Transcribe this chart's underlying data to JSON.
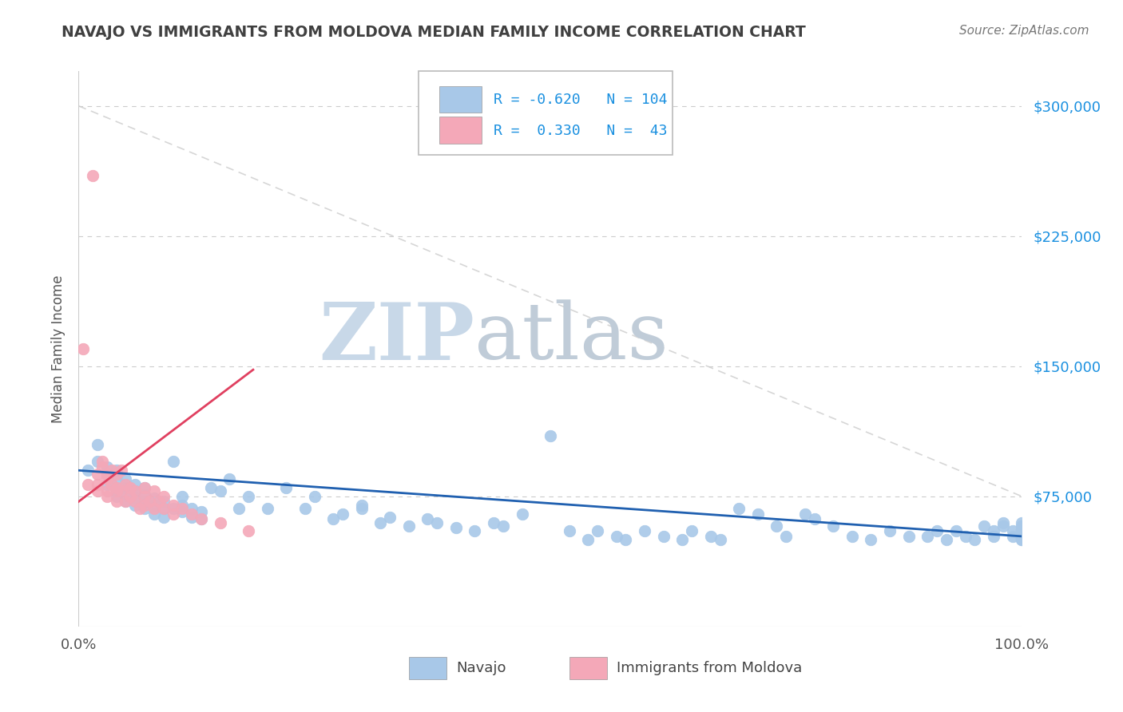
{
  "title": "NAVAJO VS IMMIGRANTS FROM MOLDOVA MEDIAN FAMILY INCOME CORRELATION CHART",
  "source_text": "Source: ZipAtlas.com",
  "ylabel": "Median Family Income",
  "xlim": [
    0,
    1
  ],
  "ylim": [
    0,
    320000
  ],
  "yticks": [
    75000,
    150000,
    225000,
    300000
  ],
  "ytick_labels": [
    "$75,000",
    "$150,000",
    "$225,000",
    "$300,000"
  ],
  "xtick_labels": [
    "0.0%",
    "100.0%"
  ],
  "legend_R_navajo": "-0.620",
  "legend_N_navajo": "104",
  "legend_R_moldova": "0.330",
  "legend_N_moldova": "43",
  "navajo_color": "#a8c8e8",
  "moldova_color": "#f4a8b8",
  "navajo_line_color": "#2060b0",
  "moldova_line_color": "#e04060",
  "diag_line_color": "#cccccc",
  "watermark_zip": "ZIP",
  "watermark_atlas": "atlas",
  "watermark_color_zip": "#c8d8e8",
  "watermark_color_atlas": "#c0ccd8",
  "background_color": "#ffffff",
  "grid_color": "#cccccc",
  "title_color": "#404040",
  "navajo_scatter_x": [
    0.01,
    0.02,
    0.02,
    0.03,
    0.03,
    0.03,
    0.04,
    0.04,
    0.04,
    0.04,
    0.05,
    0.05,
    0.05,
    0.05,
    0.06,
    0.06,
    0.06,
    0.06,
    0.07,
    0.07,
    0.07,
    0.07,
    0.08,
    0.08,
    0.08,
    0.09,
    0.09,
    0.09,
    0.1,
    0.1,
    0.11,
    0.11,
    0.11,
    0.12,
    0.12,
    0.13,
    0.13,
    0.14,
    0.15,
    0.16,
    0.17,
    0.18,
    0.2,
    0.22,
    0.24,
    0.25,
    0.27,
    0.28,
    0.3,
    0.3,
    0.32,
    0.33,
    0.35,
    0.37,
    0.38,
    0.4,
    0.42,
    0.44,
    0.45,
    0.47,
    0.5,
    0.52,
    0.54,
    0.55,
    0.57,
    0.58,
    0.6,
    0.62,
    0.64,
    0.65,
    0.67,
    0.68,
    0.7,
    0.72,
    0.74,
    0.75,
    0.77,
    0.78,
    0.8,
    0.82,
    0.84,
    0.86,
    0.88,
    0.9,
    0.91,
    0.92,
    0.93,
    0.94,
    0.95,
    0.96,
    0.97,
    0.97,
    0.98,
    0.98,
    0.99,
    0.99,
    1.0,
    1.0,
    1.0,
    1.0,
    1.0,
    1.0,
    1.0,
    1.0
  ],
  "navajo_scatter_y": [
    90000,
    105000,
    95000,
    88000,
    92000,
    82000,
    85000,
    90000,
    78000,
    75000,
    80000,
    72000,
    76000,
    85000,
    70000,
    74000,
    78000,
    82000,
    68000,
    72000,
    76000,
    80000,
    65000,
    70000,
    74000,
    63000,
    68000,
    72000,
    95000,
    68000,
    66000,
    70000,
    75000,
    63000,
    68000,
    62000,
    66000,
    80000,
    78000,
    85000,
    68000,
    75000,
    68000,
    80000,
    68000,
    75000,
    62000,
    65000,
    68000,
    70000,
    60000,
    63000,
    58000,
    62000,
    60000,
    57000,
    55000,
    60000,
    58000,
    65000,
    110000,
    55000,
    50000,
    55000,
    52000,
    50000,
    55000,
    52000,
    50000,
    55000,
    52000,
    50000,
    68000,
    65000,
    58000,
    52000,
    65000,
    62000,
    58000,
    52000,
    50000,
    55000,
    52000,
    52000,
    55000,
    50000,
    55000,
    52000,
    50000,
    58000,
    55000,
    52000,
    60000,
    58000,
    52000,
    55000,
    60000,
    55000,
    52000,
    50000,
    58000,
    55000,
    52000,
    50000
  ],
  "moldova_scatter_x": [
    0.005,
    0.01,
    0.015,
    0.02,
    0.02,
    0.02,
    0.025,
    0.025,
    0.03,
    0.03,
    0.03,
    0.03,
    0.035,
    0.035,
    0.04,
    0.04,
    0.04,
    0.04,
    0.045,
    0.045,
    0.05,
    0.05,
    0.055,
    0.055,
    0.06,
    0.06,
    0.065,
    0.07,
    0.07,
    0.07,
    0.075,
    0.08,
    0.08,
    0.085,
    0.09,
    0.09,
    0.1,
    0.1,
    0.11,
    0.12,
    0.13,
    0.15,
    0.18
  ],
  "moldova_scatter_y": [
    160000,
    82000,
    260000,
    78000,
    82000,
    88000,
    92000,
    95000,
    85000,
    88000,
    78000,
    75000,
    90000,
    82000,
    88000,
    78000,
    72000,
    80000,
    90000,
    78000,
    82000,
    72000,
    80000,
    75000,
    78000,
    72000,
    68000,
    80000,
    75000,
    70000,
    72000,
    78000,
    68000,
    72000,
    75000,
    68000,
    70000,
    65000,
    68000,
    65000,
    62000,
    60000,
    55000
  ],
  "navajo_trend_x": [
    0.0,
    1.0
  ],
  "navajo_trend_y": [
    90000,
    52000
  ],
  "moldova_trend_x": [
    0.0,
    0.185
  ],
  "moldova_trend_y": [
    72000,
    148000
  ],
  "diag_line_x": [
    0.0,
    1.0
  ],
  "diag_line_y": [
    300000,
    75000
  ]
}
